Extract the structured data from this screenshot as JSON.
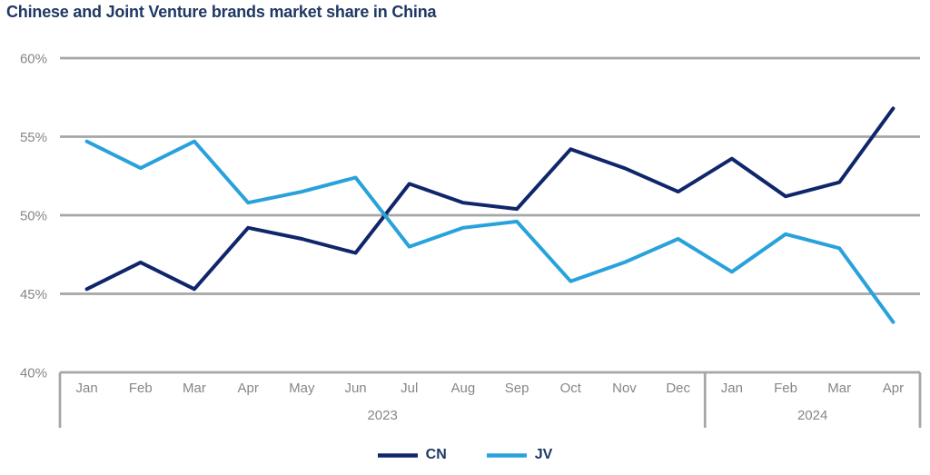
{
  "title": "Chinese and Joint Venture brands market share in China",
  "colors": {
    "title_text": "#1f3864",
    "legend_text": "#1f3864",
    "grid": "#a6a6a6",
    "axis_labels": "#868686",
    "background": "#ffffff"
  },
  "chart_data": {
    "type": "line",
    "x": [
      "Jan",
      "Feb",
      "Mar",
      "Apr",
      "May",
      "Jun",
      "Jul",
      "Aug",
      "Sep",
      "Oct",
      "Nov",
      "Dec",
      "Jan",
      "Feb",
      "Mar",
      "Apr"
    ],
    "x_groups": [
      {
        "label": "2023",
        "span": 12
      },
      {
        "label": "2024",
        "span": 4
      }
    ],
    "series": [
      {
        "name": "CN",
        "color": "#10266b",
        "values": [
          45.3,
          47.0,
          45.3,
          49.2,
          48.5,
          47.6,
          52.0,
          50.8,
          50.4,
          54.2,
          53.0,
          51.5,
          53.6,
          51.2,
          52.1,
          56.8
        ]
      },
      {
        "name": "JV",
        "color": "#29a2dc",
        "values": [
          54.7,
          53.0,
          54.7,
          50.8,
          51.5,
          52.4,
          48.0,
          49.2,
          49.6,
          45.8,
          47.0,
          48.5,
          46.4,
          48.8,
          47.9,
          43.2
        ]
      }
    ],
    "ylim": [
      40,
      60
    ],
    "yticks": [
      40,
      45,
      50,
      55,
      60
    ],
    "ytick_suffix": "%",
    "grid": true,
    "legend_position": "bottom"
  }
}
